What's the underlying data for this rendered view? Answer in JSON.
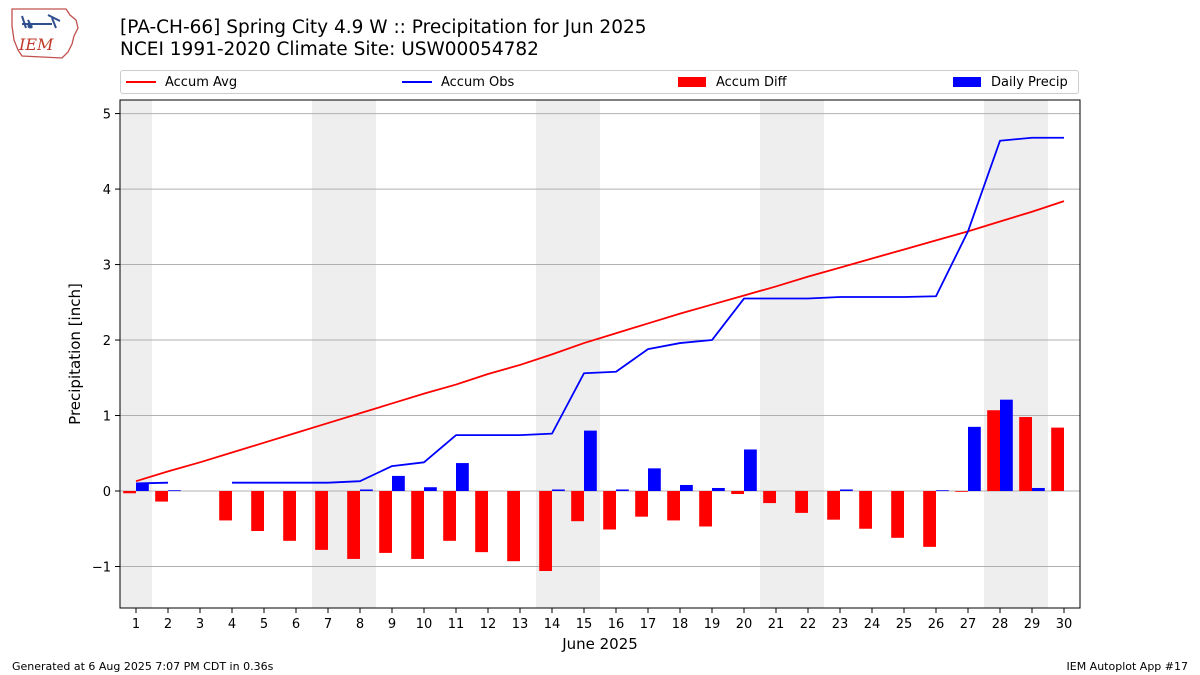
{
  "header": {
    "logo_text": "IEM",
    "title": "[PA-CH-66] Spring City 4.9 W :: Precipitation for Jun 2025",
    "subtitle": "NCEI 1991-2020 Climate Site: USW00054782"
  },
  "legend": {
    "accum_avg": "Accum Avg",
    "accum_obs": "Accum Obs",
    "accum_diff": "Accum Diff",
    "daily_precip": "Daily Precip"
  },
  "colors": {
    "accum_avg": "#ff0000",
    "accum_obs": "#0000ff",
    "accum_diff": "#ff0000",
    "daily_precip": "#0000ff",
    "weekend_shade": "#eeeeee",
    "grid": "#b0b0b0"
  },
  "footer": {
    "generated": "Generated at 6 Aug 2025 7:07 PM CDT in 0.36s",
    "app": "IEM Autoplot App #17"
  },
  "chart_data": {
    "type": "bar",
    "xlabel": "June 2025",
    "ylabel": "Precipitation [inch]",
    "xlim": [
      0.5,
      30.5
    ],
    "ylim": [
      -1.55,
      5.18
    ],
    "yticks": [
      -1,
      0,
      1,
      2,
      3,
      4,
      5
    ],
    "ytick_labels": [
      "−1",
      "0",
      "1",
      "2",
      "3",
      "4",
      "5"
    ],
    "days": [
      1,
      2,
      3,
      4,
      5,
      6,
      7,
      8,
      9,
      10,
      11,
      12,
      13,
      14,
      15,
      16,
      17,
      18,
      19,
      20,
      21,
      22,
      23,
      24,
      25,
      26,
      27,
      28,
      29,
      30
    ],
    "weekend_days": [
      1,
      7,
      8,
      14,
      15,
      21,
      22,
      28,
      29
    ],
    "grid": "horizontal",
    "legend_position": "top",
    "series": [
      {
        "name": "Accum Avg",
        "kind": "line",
        "values": [
          0.13,
          0.26,
          0.38,
          0.51,
          0.64,
          0.77,
          0.9,
          1.03,
          1.16,
          1.29,
          1.41,
          1.55,
          1.67,
          1.81,
          1.96,
          2.09,
          2.22,
          2.35,
          2.47,
          2.59,
          2.71,
          2.84,
          2.96,
          3.08,
          3.2,
          3.32,
          3.44,
          3.57,
          3.7,
          3.84
        ]
      },
      {
        "name": "Accum Obs",
        "kind": "line",
        "values": [
          0.1,
          0.11,
          null,
          0.11,
          0.11,
          0.11,
          0.11,
          0.13,
          0.33,
          0.38,
          0.74,
          0.74,
          0.74,
          0.76,
          1.56,
          1.58,
          1.88,
          1.96,
          2.0,
          2.55,
          2.55,
          2.55,
          2.57,
          2.57,
          2.57,
          2.58,
          3.44,
          4.64,
          4.68,
          4.68
        ]
      },
      {
        "name": "Accum Diff",
        "kind": "bar",
        "values": [
          -0.03,
          -0.14,
          null,
          -0.39,
          -0.53,
          -0.66,
          -0.78,
          -0.9,
          -0.82,
          -0.9,
          -0.66,
          -0.81,
          -0.93,
          -1.06,
          -0.4,
          -0.51,
          -0.34,
          -0.39,
          -0.47,
          -0.04,
          -0.16,
          -0.29,
          -0.38,
          -0.5,
          -0.62,
          -0.74,
          -0.01,
          1.07,
          0.98,
          0.84
        ]
      },
      {
        "name": "Daily Precip",
        "kind": "bar",
        "values": [
          0.1,
          0.01,
          null,
          null,
          null,
          null,
          null,
          0.02,
          0.2,
          0.05,
          0.37,
          null,
          null,
          0.02,
          0.8,
          0.02,
          0.3,
          0.08,
          0.04,
          0.55,
          null,
          null,
          0.02,
          null,
          null,
          0.01,
          0.85,
          1.21,
          0.04,
          null
        ]
      }
    ]
  }
}
